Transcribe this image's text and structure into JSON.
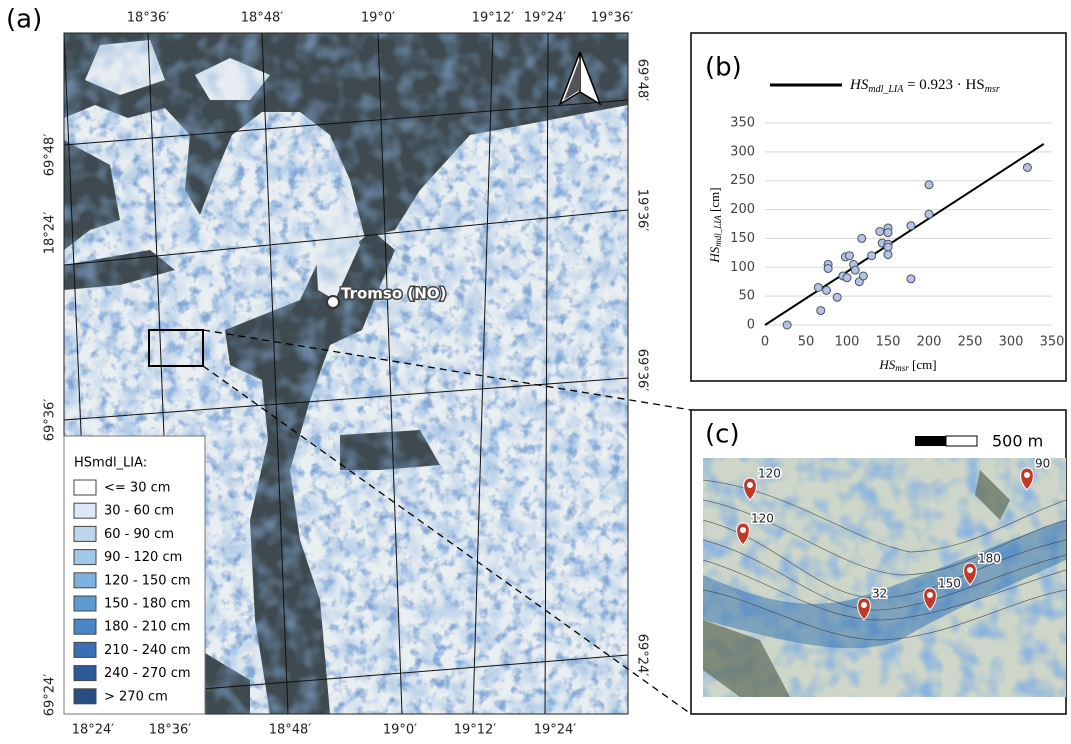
{
  "map": {
    "panel_label": "(a)",
    "top_labels": [
      "18°36′",
      "18°48′",
      "19°0′",
      "19°12′",
      "19°24′",
      "19°36′"
    ],
    "bottom_labels": [
      "18°24′",
      "18°36′",
      "18°48′",
      "19°0′",
      "19°12′",
      "19°24′"
    ],
    "left_labels": [
      "69°48′",
      "18°24′",
      "69°36′",
      "69°24′"
    ],
    "right_labels": [
      "69°48′",
      "19°36′",
      "69°36′",
      "69°24′"
    ],
    "city": "Tromso (NO)",
    "legend": {
      "title": "HSmdl_LIA:",
      "items": [
        {
          "label": "<= 30 cm",
          "color": "#ffffff"
        },
        {
          "label": "30 - 60 cm",
          "color": "#dce8f4"
        },
        {
          "label": "60 - 90 cm",
          "color": "#bdd6ec"
        },
        {
          "label": "90 - 120 cm",
          "color": "#a3c8e6"
        },
        {
          "label": "120 - 150 cm",
          "color": "#7fb1dd"
        },
        {
          "label": "150 - 180 cm",
          "color": "#5b9bd2"
        },
        {
          "label": "180 - 210 cm",
          "color": "#4887c8"
        },
        {
          "label": "210 - 240 cm",
          "color": "#3a6fb3"
        },
        {
          "label": "240 - 270 cm",
          "color": "#2e5a9a"
        },
        {
          "label": "> 270 cm",
          "color": "#2a4d86"
        }
      ]
    }
  },
  "chart_data": {
    "type": "scatter",
    "panel_label": "(b)",
    "x_label": {
      "main": "HS",
      "sub": "msr",
      "unit": " [cm]"
    },
    "y_label": {
      "main": "HS",
      "sub": "mdl_LIA",
      "unit": " [cm]"
    },
    "trendline": {
      "slope": 0.923,
      "label": [
        "HS",
        "mdl_LIA",
        " = 0.923 · HS",
        "msr"
      ],
      "color": "#000000"
    },
    "x": [
      27,
      68,
      65,
      75,
      77,
      77,
      88,
      95,
      98,
      100,
      103,
      108,
      110,
      115,
      118,
      120,
      130,
      140,
      143,
      150,
      150,
      150,
      150,
      150,
      178,
      178,
      200,
      200,
      320
    ],
    "values": [
      0,
      25,
      65,
      60,
      105,
      98,
      48,
      85,
      118,
      82,
      120,
      105,
      95,
      75,
      150,
      85,
      120,
      162,
      142,
      168,
      160,
      140,
      135,
      122,
      172,
      80,
      243,
      192,
      273
    ],
    "color": "#b4c3e3",
    "xlim": [
      0,
      350
    ],
    "xticks": [
      0,
      50,
      100,
      150,
      200,
      250,
      300,
      350
    ],
    "ylim": [
      0,
      350
    ],
    "yticks": [
      0,
      50,
      100,
      150,
      200,
      250,
      300,
      350
    ],
    "grid": true
  },
  "inset": {
    "panel_label": "(c)",
    "scale_label": "500 m",
    "pins": [
      120,
      120,
      90,
      180,
      150,
      32
    ]
  }
}
